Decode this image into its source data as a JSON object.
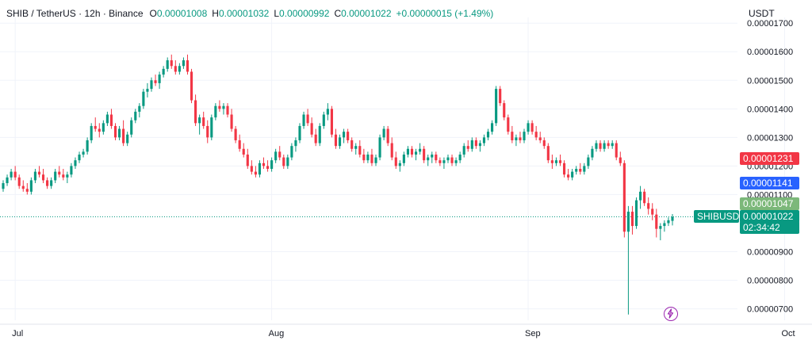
{
  "header": {
    "symbol": "SHIB / TetherUS · 12h · Binance",
    "o_label": "O",
    "o_value": "0.00001008",
    "h_label": "H",
    "h_value": "0.00001032",
    "l_label": "L",
    "l_value": "0.00000992",
    "c_label": "C",
    "c_value": "0.00001022",
    "change": "+0.00000015 (+1.49%)"
  },
  "axis_unit": "USDT",
  "price_tags": {
    "red": {
      "text": "0.00001231",
      "color": "#f23645"
    },
    "blue": {
      "text": "0.00001141",
      "color": "#2962ff"
    },
    "green": {
      "text": "0.00001047",
      "color": "#7cb87a"
    },
    "symbol_tag": {
      "text": "SHIBUSDT",
      "color": "#089981"
    },
    "last": {
      "text": "0.00001022",
      "color": "#089981"
    },
    "countdown": {
      "text": "02:34:42",
      "color": "#089981"
    }
  },
  "colors": {
    "up": "#089981",
    "down": "#f23645",
    "grid": "#f0f3fa"
  },
  "chart_data": {
    "type": "candlestick",
    "y_tick_labels": [
      "0.00001700",
      "0.00001600",
      "0.00001500",
      "0.00001400",
      "0.00001300",
      "0.00001200",
      "0.00001100",
      "0.00000900",
      "0.00000800",
      "0.00000700"
    ],
    "ylim": [
      6.6e-06,
      1.72e-05
    ],
    "x_tick_labels": [
      "Jul",
      "Aug",
      "Sep",
      "Oct"
    ],
    "x_tick_index": [
      3,
      67,
      131,
      195
    ],
    "candles": [
      [
        1.12,
        1.15,
        1.11,
        1.14
      ],
      [
        1.14,
        1.17,
        1.13,
        1.16
      ],
      [
        1.16,
        1.19,
        1.15,
        1.18
      ],
      [
        1.18,
        1.2,
        1.15,
        1.16
      ],
      [
        1.16,
        1.17,
        1.12,
        1.13
      ],
      [
        1.13,
        1.15,
        1.11,
        1.12
      ],
      [
        1.12,
        1.14,
        1.1,
        1.11
      ],
      [
        1.11,
        1.16,
        1.1,
        1.15
      ],
      [
        1.15,
        1.19,
        1.14,
        1.18
      ],
      [
        1.18,
        1.2,
        1.16,
        1.17
      ],
      [
        1.17,
        1.19,
        1.14,
        1.15
      ],
      [
        1.15,
        1.16,
        1.12,
        1.13
      ],
      [
        1.13,
        1.16,
        1.12,
        1.15
      ],
      [
        1.15,
        1.19,
        1.14,
        1.18
      ],
      [
        1.18,
        1.2,
        1.16,
        1.17
      ],
      [
        1.17,
        1.19,
        1.15,
        1.16
      ],
      [
        1.16,
        1.18,
        1.14,
        1.17
      ],
      [
        1.17,
        1.21,
        1.16,
        1.2
      ],
      [
        1.2,
        1.23,
        1.19,
        1.22
      ],
      [
        1.22,
        1.25,
        1.21,
        1.24
      ],
      [
        1.24,
        1.26,
        1.23,
        1.25
      ],
      [
        1.25,
        1.3,
        1.24,
        1.29
      ],
      [
        1.29,
        1.35,
        1.28,
        1.34
      ],
      [
        1.34,
        1.37,
        1.32,
        1.33
      ],
      [
        1.33,
        1.35,
        1.3,
        1.32
      ],
      [
        1.32,
        1.36,
        1.31,
        1.35
      ],
      [
        1.35,
        1.39,
        1.34,
        1.38
      ],
      [
        1.38,
        1.4,
        1.33,
        1.34
      ],
      [
        1.34,
        1.35,
        1.29,
        1.3
      ],
      [
        1.3,
        1.34,
        1.29,
        1.33
      ],
      [
        1.33,
        1.36,
        1.27,
        1.28
      ],
      [
        1.28,
        1.32,
        1.27,
        1.31
      ],
      [
        1.31,
        1.37,
        1.3,
        1.36
      ],
      [
        1.36,
        1.4,
        1.35,
        1.39
      ],
      [
        1.39,
        1.42,
        1.37,
        1.41
      ],
      [
        1.41,
        1.47,
        1.4,
        1.46
      ],
      [
        1.46,
        1.49,
        1.44,
        1.47
      ],
      [
        1.47,
        1.51,
        1.46,
        1.5
      ],
      [
        1.5,
        1.52,
        1.48,
        1.49
      ],
      [
        1.49,
        1.53,
        1.47,
        1.52
      ],
      [
        1.52,
        1.55,
        1.51,
        1.54
      ],
      [
        1.54,
        1.58,
        1.53,
        1.57
      ],
      [
        1.57,
        1.59,
        1.54,
        1.55
      ],
      [
        1.55,
        1.57,
        1.52,
        1.53
      ],
      [
        1.53,
        1.56,
        1.52,
        1.55
      ],
      [
        1.55,
        1.58,
        1.54,
        1.57
      ],
      [
        1.57,
        1.59,
        1.52,
        1.53
      ],
      [
        1.53,
        1.54,
        1.42,
        1.43
      ],
      [
        1.43,
        1.45,
        1.34,
        1.35
      ],
      [
        1.35,
        1.38,
        1.31,
        1.37
      ],
      [
        1.37,
        1.39,
        1.33,
        1.34
      ],
      [
        1.34,
        1.36,
        1.28,
        1.3
      ],
      [
        1.3,
        1.38,
        1.29,
        1.37
      ],
      [
        1.37,
        1.42,
        1.36,
        1.41
      ],
      [
        1.41,
        1.43,
        1.39,
        1.4
      ],
      [
        1.4,
        1.42,
        1.38,
        1.41
      ],
      [
        1.41,
        1.42,
        1.37,
        1.38
      ],
      [
        1.38,
        1.4,
        1.32,
        1.33
      ],
      [
        1.33,
        1.34,
        1.28,
        1.29
      ],
      [
        1.29,
        1.31,
        1.25,
        1.26
      ],
      [
        1.26,
        1.28,
        1.23,
        1.24
      ],
      [
        1.24,
        1.26,
        1.19,
        1.2
      ],
      [
        1.2,
        1.22,
        1.17,
        1.18
      ],
      [
        1.18,
        1.2,
        1.16,
        1.17
      ],
      [
        1.17,
        1.22,
        1.16,
        1.21
      ],
      [
        1.21,
        1.23,
        1.19,
        1.2
      ],
      [
        1.2,
        1.22,
        1.18,
        1.19
      ],
      [
        1.19,
        1.23,
        1.18,
        1.22
      ],
      [
        1.22,
        1.26,
        1.21,
        1.25
      ],
      [
        1.25,
        1.27,
        1.22,
        1.23
      ],
      [
        1.23,
        1.24,
        1.19,
        1.2
      ],
      [
        1.2,
        1.24,
        1.19,
        1.23
      ],
      [
        1.23,
        1.28,
        1.22,
        1.27
      ],
      [
        1.27,
        1.3,
        1.25,
        1.29
      ],
      [
        1.29,
        1.35,
        1.28,
        1.34
      ],
      [
        1.34,
        1.39,
        1.33,
        1.38
      ],
      [
        1.38,
        1.4,
        1.34,
        1.35
      ],
      [
        1.35,
        1.37,
        1.3,
        1.31
      ],
      [
        1.31,
        1.33,
        1.27,
        1.28
      ],
      [
        1.28,
        1.35,
        1.27,
        1.34
      ],
      [
        1.34,
        1.39,
        1.33,
        1.38
      ],
      [
        1.38,
        1.42,
        1.36,
        1.4
      ],
      [
        1.4,
        1.41,
        1.3,
        1.31
      ],
      [
        1.31,
        1.33,
        1.26,
        1.27
      ],
      [
        1.27,
        1.31,
        1.26,
        1.3
      ],
      [
        1.3,
        1.33,
        1.28,
        1.32
      ],
      [
        1.32,
        1.33,
        1.28,
        1.29
      ],
      [
        1.29,
        1.3,
        1.25,
        1.26
      ],
      [
        1.26,
        1.28,
        1.24,
        1.27
      ],
      [
        1.27,
        1.29,
        1.23,
        1.24
      ],
      [
        1.24,
        1.26,
        1.21,
        1.22
      ],
      [
        1.22,
        1.25,
        1.21,
        1.24
      ],
      [
        1.24,
        1.26,
        1.2,
        1.21
      ],
      [
        1.21,
        1.24,
        1.2,
        1.23
      ],
      [
        1.23,
        1.31,
        1.22,
        1.3
      ],
      [
        1.3,
        1.34,
        1.29,
        1.33
      ],
      [
        1.33,
        1.34,
        1.27,
        1.28
      ],
      [
        1.28,
        1.3,
        1.22,
        1.23
      ],
      [
        1.23,
        1.25,
        1.19,
        1.2
      ],
      [
        1.2,
        1.22,
        1.18,
        1.21
      ],
      [
        1.21,
        1.25,
        1.2,
        1.24
      ],
      [
        1.24,
        1.27,
        1.23,
        1.26
      ],
      [
        1.26,
        1.27,
        1.23,
        1.24
      ],
      [
        1.24,
        1.26,
        1.22,
        1.25
      ],
      [
        1.25,
        1.28,
        1.24,
        1.26
      ],
      [
        1.26,
        1.27,
        1.21,
        1.22
      ],
      [
        1.22,
        1.24,
        1.2,
        1.23
      ],
      [
        1.23,
        1.25,
        1.21,
        1.24
      ],
      [
        1.24,
        1.25,
        1.21,
        1.22
      ],
      [
        1.22,
        1.23,
        1.2,
        1.21
      ],
      [
        1.21,
        1.23,
        1.19,
        1.22
      ],
      [
        1.22,
        1.24,
        1.21,
        1.23
      ],
      [
        1.23,
        1.24,
        1.2,
        1.21
      ],
      [
        1.21,
        1.23,
        1.2,
        1.22
      ],
      [
        1.22,
        1.25,
        1.21,
        1.24
      ],
      [
        1.24,
        1.28,
        1.23,
        1.27
      ],
      [
        1.27,
        1.29,
        1.25,
        1.26
      ],
      [
        1.26,
        1.3,
        1.25,
        1.29
      ],
      [
        1.29,
        1.3,
        1.26,
        1.27
      ],
      [
        1.27,
        1.29,
        1.25,
        1.28
      ],
      [
        1.28,
        1.31,
        1.27,
        1.3
      ],
      [
        1.3,
        1.33,
        1.29,
        1.32
      ],
      [
        1.32,
        1.36,
        1.31,
        1.35
      ],
      [
        1.35,
        1.48,
        1.34,
        1.47
      ],
      [
        1.47,
        1.48,
        1.41,
        1.42
      ],
      [
        1.42,
        1.43,
        1.36,
        1.37
      ],
      [
        1.37,
        1.38,
        1.31,
        1.32
      ],
      [
        1.32,
        1.34,
        1.28,
        1.29
      ],
      [
        1.29,
        1.31,
        1.27,
        1.3
      ],
      [
        1.3,
        1.32,
        1.28,
        1.29
      ],
      [
        1.29,
        1.33,
        1.28,
        1.32
      ],
      [
        1.32,
        1.36,
        1.31,
        1.35
      ],
      [
        1.35,
        1.36,
        1.31,
        1.32
      ],
      [
        1.32,
        1.34,
        1.29,
        1.3
      ],
      [
        1.3,
        1.32,
        1.28,
        1.29
      ],
      [
        1.29,
        1.3,
        1.26,
        1.27
      ],
      [
        1.27,
        1.28,
        1.21,
        1.22
      ],
      [
        1.22,
        1.24,
        1.19,
        1.21
      ],
      [
        1.21,
        1.23,
        1.2,
        1.22
      ],
      [
        1.22,
        1.24,
        1.2,
        1.21
      ],
      [
        1.21,
        1.22,
        1.16,
        1.17
      ],
      [
        1.17,
        1.19,
        1.15,
        1.16
      ],
      [
        1.16,
        1.19,
        1.15,
        1.18
      ],
      [
        1.18,
        1.2,
        1.17,
        1.19
      ],
      [
        1.19,
        1.21,
        1.17,
        1.18
      ],
      [
        1.18,
        1.21,
        1.17,
        1.2
      ],
      [
        1.2,
        1.24,
        1.19,
        1.23
      ],
      [
        1.23,
        1.27,
        1.22,
        1.26
      ],
      [
        1.26,
        1.29,
        1.25,
        1.28
      ],
      [
        1.28,
        1.29,
        1.25,
        1.26
      ],
      [
        1.26,
        1.29,
        1.25,
        1.28
      ],
      [
        1.28,
        1.29,
        1.26,
        1.27
      ],
      [
        1.27,
        1.29,
        1.26,
        1.28
      ],
      [
        1.28,
        1.29,
        1.22,
        1.23
      ],
      [
        1.23,
        1.25,
        1.2,
        1.21
      ],
      [
        1.21,
        1.22,
        0.95,
        0.97
      ],
      [
        0.97,
        1.06,
        0.68,
        1.04
      ],
      [
        1.04,
        1.06,
        0.96,
        0.99
      ],
      [
        0.99,
        1.09,
        0.98,
        1.08
      ],
      [
        1.08,
        1.13,
        1.05,
        1.11
      ],
      [
        1.11,
        1.12,
        1.06,
        1.07
      ],
      [
        1.07,
        1.09,
        1.03,
        1.05
      ],
      [
        1.05,
        1.07,
        1.01,
        1.03
      ],
      [
        1.03,
        1.05,
        0.95,
        0.98
      ],
      [
        0.98,
        1.0,
        0.94,
        0.99
      ],
      [
        0.99,
        1.01,
        0.97,
        1.0
      ],
      [
        1.0,
        1.02,
        0.99,
        1.01
      ],
      [
        1.008,
        1.032,
        0.992,
        1.022
      ]
    ],
    "ref_lines": [
      1.231e-05,
      1.141e-05,
      1.047e-05,
      1.022e-05
    ]
  }
}
